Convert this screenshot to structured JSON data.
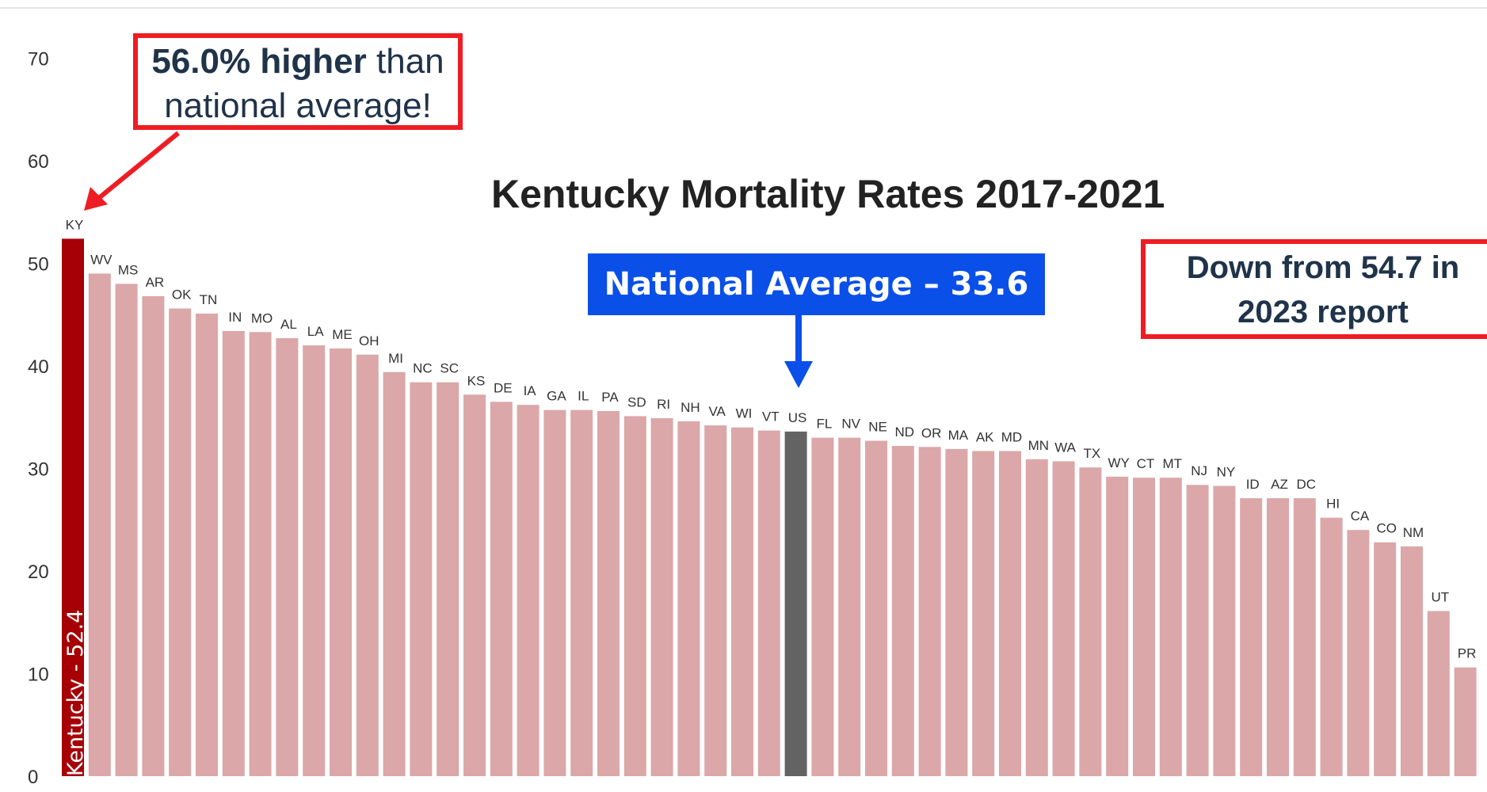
{
  "chart_data": {
    "type": "bar",
    "title": "Kentucky Mortality Rates 2017-2021",
    "ylim": [
      0,
      70
    ],
    "yticks": [
      0,
      10,
      20,
      30,
      40,
      50,
      60,
      70
    ],
    "grid": false,
    "categories": [
      "KY",
      "WV",
      "MS",
      "AR",
      "OK",
      "TN",
      "IN",
      "MO",
      "AL",
      "LA",
      "ME",
      "OH",
      "MI",
      "NC",
      "SC",
      "KS",
      "DE",
      "IA",
      "GA",
      "IL",
      "PA",
      "SD",
      "RI",
      "NH",
      "VA",
      "WI",
      "VT",
      "US",
      "FL",
      "NV",
      "NE",
      "ND",
      "OR",
      "MA",
      "AK",
      "MD",
      "MN",
      "WA",
      "TX",
      "WY",
      "CT",
      "MT",
      "NJ",
      "NY",
      "ID",
      "AZ",
      "DC",
      "HI",
      "CA",
      "CO",
      "NM",
      "UT",
      "PR"
    ],
    "values": [
      52.4,
      49.0,
      48.0,
      46.8,
      45.6,
      45.1,
      43.4,
      43.3,
      42.7,
      42.0,
      41.7,
      41.1,
      39.4,
      38.4,
      38.4,
      37.2,
      36.5,
      36.2,
      35.7,
      35.7,
      35.6,
      35.1,
      34.9,
      34.6,
      34.2,
      34.0,
      33.7,
      33.6,
      33.0,
      33.0,
      32.7,
      32.2,
      32.1,
      31.9,
      31.7,
      31.7,
      30.9,
      30.7,
      30.1,
      29.2,
      29.1,
      29.1,
      28.4,
      28.3,
      27.1,
      27.1,
      27.1,
      25.2,
      24.0,
      22.8,
      22.4,
      16.1,
      10.6
    ],
    "colors": {
      "default": "#dba7a8",
      "highlight": "#a60006",
      "national": "#636363"
    }
  },
  "annotations": {
    "higher_bold": "56.0% higher",
    "higher_rest": " than",
    "higher_line2": "national average!",
    "down_line1": "Down from 54.7 in",
    "down_line2": "2023 report",
    "national_average": "National Average – 33.6",
    "kentucky_bar_label": "Kentucky - 52.4"
  },
  "colors": {
    "callout_border": "#ee1d23",
    "national_box": "#0a4fe8",
    "arrow_red": "#ee1d23",
    "arrow_blue": "#0a4fe8"
  }
}
